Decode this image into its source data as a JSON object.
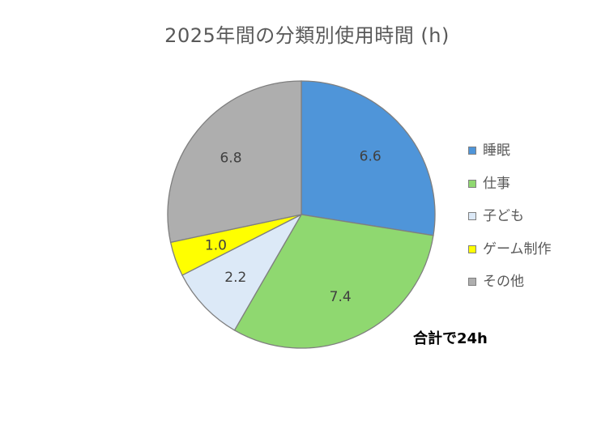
{
  "chart_data": {
    "type": "pie",
    "title": "2025年間の分類別使用時間 (h)",
    "categories": [
      "睡眠",
      "仕事",
      "子ども",
      "ゲーム制作",
      "その他"
    ],
    "values": [
      6.6,
      7.4,
      2.2,
      1.0,
      6.8
    ],
    "data_labels": [
      "6.6",
      "7.4",
      "2.2",
      "1.0",
      "6.8"
    ],
    "colors": [
      "#4f95d9",
      "#8fd870",
      "#dce9f7",
      "#ffff00",
      "#aeaeae"
    ],
    "legend_position": "right",
    "annotation": "合計で24h"
  }
}
